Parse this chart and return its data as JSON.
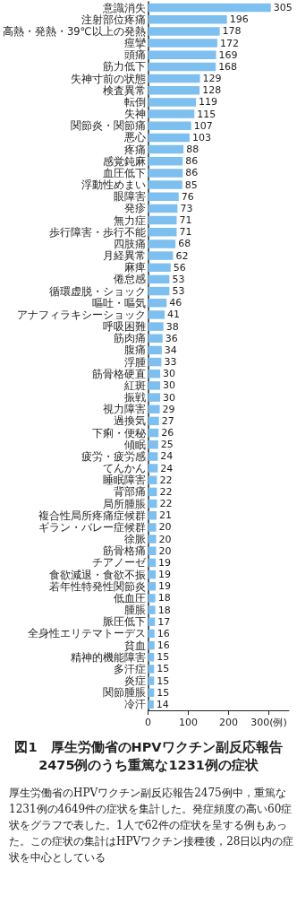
{
  "chart_data": {
    "type": "bar",
    "orientation": "horizontal",
    "title": "図1　厚生労働省のHPVワクチン副反応報告2475例のうち重篤な1231例の症状",
    "annotations": [
      "厚生労働省のHPVワクチン副反応報告2475例中，重篤な1231例の4649件の症状を集計した。発症頻度の高い60症状をグラフで表した。1人で62件の症状を呈する例もあった。この症状の集計はHPVワクチン接種後，28日以内の症状を中心としている"
    ],
    "categories": [
      "意識消失",
      "注射部位疼痛",
      "高熱・発熱・39℃以上の発熱",
      "痙攣",
      "頭痛",
      "筋力低下",
      "失神寸前の状態",
      "検査異常",
      "転倒",
      "失神",
      "関節炎・関節痛",
      "悪心",
      "疼痛",
      "感覚鈍麻",
      "血圧低下",
      "浮動性めまい",
      "眼障害",
      "発疹",
      "無力症",
      "歩行障害・歩行不能",
      "四肢痛",
      "月経異常",
      "麻痺",
      "倦怠感",
      "循環虚脱・ショック",
      "嘔吐・嘔気",
      "アナフィラキシーショック",
      "呼吸困難",
      "筋肉痛",
      "腹痛",
      "浮腫",
      "筋骨格硬直",
      "紅斑",
      "振戦",
      "視力障害",
      "過換気",
      "下痢・便秘",
      "傾眠",
      "疲労・疲労感",
      "てんかん",
      "睡眠障害",
      "背部痛",
      "局所腫脹",
      "複合性局所疼痛症候群",
      "ギラン・バレー症候群",
      "徐脈",
      "筋骨格痛",
      "チアノーゼ",
      "食欲減退・食欲不振",
      "若年性特発性関節炎",
      "低血圧",
      "腫脹",
      "脈圧低下",
      "全身性エリテマトーデス",
      "貧血",
      "精神的機能障害",
      "多汗症",
      "炎症",
      "関節腫脹",
      "冷汗"
    ],
    "values": [
      305,
      196,
      178,
      172,
      169,
      168,
      129,
      128,
      119,
      115,
      107,
      103,
      88,
      86,
      86,
      85,
      76,
      73,
      71,
      71,
      68,
      62,
      56,
      53,
      53,
      46,
      41,
      38,
      36,
      34,
      33,
      30,
      30,
      30,
      29,
      27,
      26,
      25,
      24,
      24,
      22,
      22,
      22,
      21,
      20,
      20,
      20,
      19,
      19,
      19,
      18,
      18,
      17,
      16,
      16,
      15,
      15,
      15,
      15,
      14
    ],
    "color": "#7dbfef",
    "xlim": [
      0,
      350
    ],
    "xticks": [
      0,
      100,
      200,
      {
        "value": 300,
        "label": "300(例)"
      }
    ],
    "data_labels": true
  }
}
